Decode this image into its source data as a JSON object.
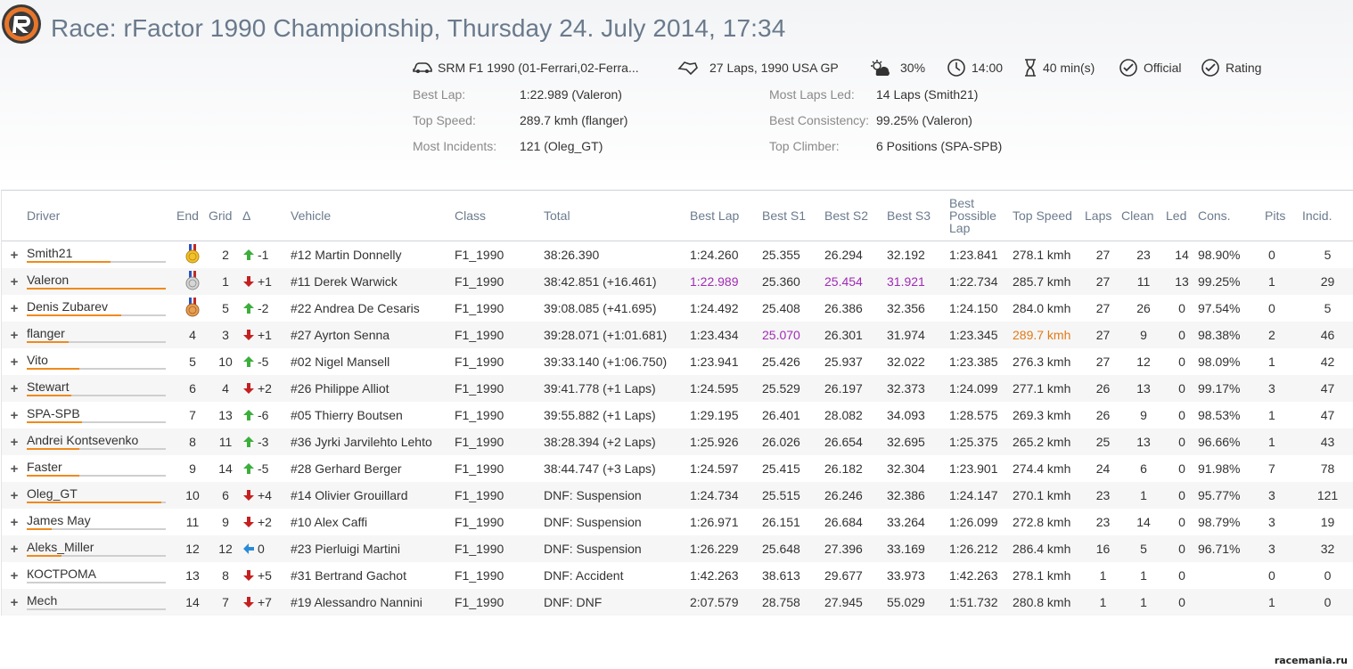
{
  "header": {
    "title": "Race: rFactor 1990 Championship, Thursday 24. July 2014, 17:34",
    "vehicle_info": "SRM F1 1990 (01-Ferrari,02-Ferra...",
    "laps_track": "27 Laps, 1990 USA GP",
    "weather": "30%",
    "start_time": "14:00",
    "duration": "40 min(s)",
    "official": "Official",
    "rating": "Rating"
  },
  "stats": [
    {
      "label": "Best Lap:",
      "value": "1:22.989 (Valeron)"
    },
    {
      "label": "Top Speed:",
      "value": "289.7 kmh (flanger)"
    },
    {
      "label": "Most Incidents:",
      "value": "121 (Oleg_GT)"
    },
    {
      "label": "Most Laps Led:",
      "value": "14 Laps (Smith21)"
    },
    {
      "label": "Best Consistency:",
      "value": "99.25% (Valeron)"
    },
    {
      "label": "Top Climber:",
      "value": "6 Positions (SPA-SPB)"
    }
  ],
  "columns": {
    "driver": "Driver",
    "end": "End",
    "grid": "Grid",
    "delta": "Δ",
    "vehicle": "Vehicle",
    "class": "Class",
    "total": "Total",
    "best_lap": "Best Lap",
    "s1": "Best S1",
    "s2": "Best S2",
    "s3": "Best S3",
    "bpl1": "Best",
    "bpl2": "Possible",
    "bpl3": "Lap",
    "top_speed": "Top Speed",
    "laps": "Laps",
    "clean": "Clean",
    "led": "Led",
    "cons": "Cons.",
    "pits": "Pits",
    "incid": "Incid."
  },
  "rows": [
    {
      "driver": "Smith21",
      "rating": 0.6,
      "end": "",
      "medal": "gold",
      "grid": "2",
      "dir": "up",
      "delta": "-1",
      "vehicle": "#12 Martin Donnelly",
      "class": "F1_1990",
      "total": "38:26.390",
      "best_lap": "1:24.260",
      "s1": "25.355",
      "s2": "26.294",
      "s3": "32.192",
      "bpl": "1:23.841",
      "speed": "278.1 kmh",
      "laps": "27",
      "clean": "23",
      "led": "14",
      "cons": "98.90%",
      "pits": "0",
      "incid": "5"
    },
    {
      "driver": "Valeron",
      "rating": 1.0,
      "end": "",
      "medal": "silver",
      "grid": "1",
      "dir": "down",
      "delta": "+1",
      "vehicle": "#11 Derek Warwick",
      "class": "F1_1990",
      "total": "38:42.851 (+16.461)",
      "best_lap": "1:22.989",
      "s1": "25.360",
      "s2": "25.454",
      "s3": "31.921",
      "bpl": "1:22.734",
      "speed": "285.7 kmh",
      "laps": "27",
      "clean": "11",
      "led": "13",
      "cons": "99.25%",
      "pits": "1",
      "incid": "29"
    },
    {
      "driver": "Denis Zubarev",
      "rating": 0.68,
      "end": "",
      "medal": "bronze",
      "grid": "5",
      "dir": "up",
      "delta": "-2",
      "vehicle": "#22 Andrea De Cesaris",
      "class": "F1_1990",
      "total": "39:08.085 (+41.695)",
      "best_lap": "1:24.492",
      "s1": "25.408",
      "s2": "26.386",
      "s3": "32.356",
      "bpl": "1:24.150",
      "speed": "284.0 kmh",
      "laps": "27",
      "clean": "26",
      "led": "0",
      "cons": "97.54%",
      "pits": "0",
      "incid": "5"
    },
    {
      "driver": "flanger",
      "rating": 0.3,
      "end": "4",
      "medal": "",
      "grid": "3",
      "dir": "down",
      "delta": "+1",
      "vehicle": "#27 Ayrton Senna",
      "class": "F1_1990",
      "total": "39:28.071 (+1:01.681)",
      "best_lap": "1:23.434",
      "s1": "25.070",
      "s2": "26.301",
      "s3": "31.974",
      "bpl": "1:23.345",
      "speed": "289.7 kmh",
      "laps": "27",
      "clean": "9",
      "led": "0",
      "cons": "98.38%",
      "pits": "2",
      "incid": "46"
    },
    {
      "driver": "Vito",
      "rating": 0.38,
      "end": "5",
      "medal": "",
      "grid": "10",
      "dir": "up",
      "delta": "-5",
      "vehicle": "#02 Nigel Mansell",
      "class": "F1_1990",
      "total": "39:33.140 (+1:06.750)",
      "best_lap": "1:23.941",
      "s1": "25.426",
      "s2": "25.937",
      "s3": "32.022",
      "bpl": "1:23.385",
      "speed": "276.3 kmh",
      "laps": "27",
      "clean": "12",
      "led": "0",
      "cons": "98.09%",
      "pits": "1",
      "incid": "42"
    },
    {
      "driver": "Stewart",
      "rating": 0.32,
      "end": "6",
      "medal": "",
      "grid": "4",
      "dir": "down",
      "delta": "+2",
      "vehicle": "#26 Philippe Alliot",
      "class": "F1_1990",
      "total": "39:41.778 (+1 Laps)",
      "best_lap": "1:24.595",
      "s1": "25.529",
      "s2": "26.197",
      "s3": "32.373",
      "bpl": "1:24.099",
      "speed": "277.1 kmh",
      "laps": "26",
      "clean": "13",
      "led": "0",
      "cons": "99.17%",
      "pits": "3",
      "incid": "47"
    },
    {
      "driver": "SPA-SPB",
      "rating": 0.4,
      "end": "7",
      "medal": "",
      "grid": "13",
      "dir": "up",
      "delta": "-6",
      "vehicle": "#05 Thierry Boutsen",
      "class": "F1_1990",
      "total": "39:55.882 (+1 Laps)",
      "best_lap": "1:29.195",
      "s1": "26.401",
      "s2": "28.082",
      "s3": "34.093",
      "bpl": "1:28.575",
      "speed": "269.3 kmh",
      "laps": "26",
      "clean": "9",
      "led": "0",
      "cons": "98.53%",
      "pits": "1",
      "incid": "47"
    },
    {
      "driver": "Andrei Kontsevenko",
      "rating": 0.38,
      "end": "8",
      "medal": "",
      "grid": "11",
      "dir": "up",
      "delta": "-3",
      "vehicle": "#36 Jyrki Jarvilehto Lehto",
      "class": "F1_1990",
      "total": "38:28.394 (+2 Laps)",
      "best_lap": "1:25.926",
      "s1": "26.026",
      "s2": "26.654",
      "s3": "32.695",
      "bpl": "1:25.375",
      "speed": "265.2 kmh",
      "laps": "25",
      "clean": "13",
      "led": "0",
      "cons": "96.66%",
      "pits": "1",
      "incid": "43"
    },
    {
      "driver": "Faster",
      "rating": 0.38,
      "end": "9",
      "medal": "",
      "grid": "14",
      "dir": "up",
      "delta": "-5",
      "vehicle": "#28 Gerhard Berger",
      "class": "F1_1990",
      "total": "38:44.747 (+3 Laps)",
      "best_lap": "1:24.597",
      "s1": "25.415",
      "s2": "26.182",
      "s3": "32.304",
      "bpl": "1:23.901",
      "speed": "274.4 kmh",
      "laps": "24",
      "clean": "6",
      "led": "0",
      "cons": "91.98%",
      "pits": "7",
      "incid": "78"
    },
    {
      "driver": "Oleg_GT",
      "rating": 0.97,
      "end": "10",
      "medal": "",
      "grid": "6",
      "dir": "down",
      "delta": "+4",
      "vehicle": "#14 Olivier Grouillard",
      "class": "F1_1990",
      "total": "DNF: Suspension",
      "best_lap": "1:24.734",
      "s1": "25.515",
      "s2": "26.246",
      "s3": "32.386",
      "bpl": "1:24.147",
      "speed": "270.1 kmh",
      "laps": "23",
      "clean": "1",
      "led": "0",
      "cons": "95.77%",
      "pits": "3",
      "incid": "121"
    },
    {
      "driver": "James May",
      "rating": 0.18,
      "end": "11",
      "medal": "",
      "grid": "9",
      "dir": "down",
      "delta": "+2",
      "vehicle": "#10 Alex Caffi",
      "class": "F1_1990",
      "total": "DNF: Suspension",
      "best_lap": "1:26.971",
      "s1": "26.151",
      "s2": "26.684",
      "s3": "33.264",
      "bpl": "1:26.099",
      "speed": "272.8 kmh",
      "laps": "23",
      "clean": "14",
      "led": "0",
      "cons": "98.79%",
      "pits": "3",
      "incid": "19"
    },
    {
      "driver": "Aleks_Miller",
      "rating": 0.25,
      "end": "12",
      "medal": "",
      "grid": "12",
      "dir": "left",
      "delta": "0",
      "vehicle": "#23 Pierluigi Martini",
      "class": "F1_1990",
      "total": "DNF: Suspension",
      "best_lap": "1:26.229",
      "s1": "25.648",
      "s2": "27.396",
      "s3": "33.169",
      "bpl": "1:26.212",
      "speed": "286.4 kmh",
      "laps": "16",
      "clean": "5",
      "led": "0",
      "cons": "96.71%",
      "pits": "3",
      "incid": "32"
    },
    {
      "driver": "КОСТРОМА",
      "rating": 0.0,
      "end": "13",
      "medal": "",
      "grid": "8",
      "dir": "down",
      "delta": "+5",
      "vehicle": "#31 Bertrand Gachot",
      "class": "F1_1990",
      "total": "DNF: Accident",
      "best_lap": "1:42.263",
      "s1": "38.613",
      "s2": "29.677",
      "s3": "33.973",
      "bpl": "1:42.263",
      "speed": "278.1 kmh",
      "laps": "1",
      "clean": "1",
      "led": "0",
      "cons": "",
      "pits": "0",
      "incid": "0"
    },
    {
      "driver": "Mech",
      "rating": 0.0,
      "end": "14",
      "medal": "",
      "grid": "7",
      "dir": "down",
      "delta": "+7",
      "vehicle": "#19 Alessandro Nannini",
      "class": "F1_1990",
      "total": "DNF: DNF",
      "best_lap": "2:07.579",
      "s1": "28.758",
      "s2": "27.945",
      "s3": "55.029",
      "bpl": "1:51.732",
      "speed": "280.8 kmh",
      "laps": "1",
      "clean": "1",
      "led": "0",
      "cons": "",
      "pits": "1",
      "incid": "0"
    }
  ],
  "highlights": {
    "best_lap": "1:22.989",
    "s1": "25.070",
    "s2": "25.454",
    "s3": "31.921",
    "speed": "289.7 kmh"
  },
  "colors": {
    "title": "#6a7a8c",
    "accent_orange": "#f08a1c",
    "best_purple": "#a02bb5",
    "best_speed_orange": "#e07a18",
    "arrow_up": "#3cae3c",
    "arrow_down": "#c42020",
    "arrow_same": "#2a8ad8"
  },
  "footer": "racemania.ru"
}
